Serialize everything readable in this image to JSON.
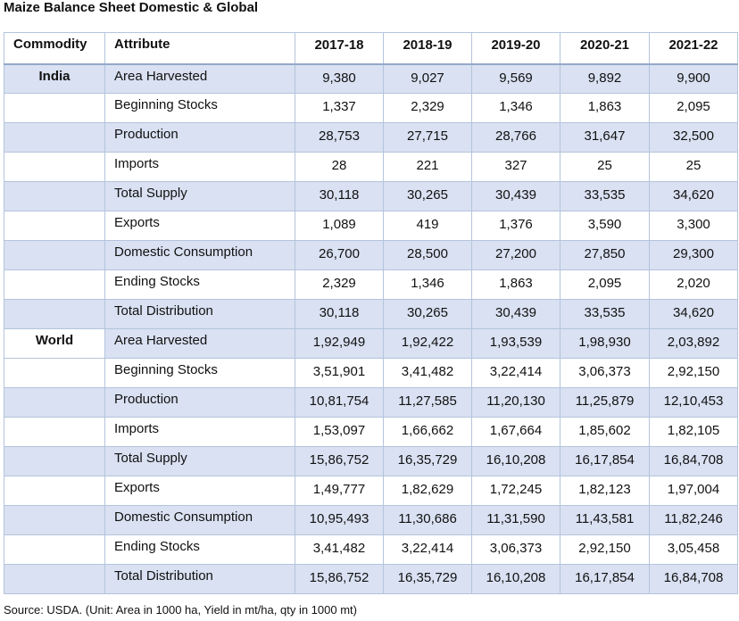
{
  "title": "Maize Balance Sheet Domestic & Global",
  "headers": [
    "Commodity",
    "Attribute",
    "2017-18",
    "2018-19",
    "2019-20",
    "2020-21",
    "2021-22"
  ],
  "groups": [
    {
      "commodity": "India",
      "rows": [
        {
          "attribute": "Area Harvested",
          "values": [
            "9,380",
            "9,027",
            "9,569",
            "9,892",
            "9,900"
          ]
        },
        {
          "attribute": "Beginning Stocks",
          "values": [
            "1,337",
            "2,329",
            "1,346",
            "1,863",
            "2,095"
          ]
        },
        {
          "attribute": "Production",
          "values": [
            "28,753",
            "27,715",
            "28,766",
            "31,647",
            "32,500"
          ]
        },
        {
          "attribute": "Imports",
          "values": [
            "28",
            "221",
            "327",
            "25",
            "25"
          ]
        },
        {
          "attribute": "Total Supply",
          "values": [
            "30,118",
            "30,265",
            "30,439",
            "33,535",
            "34,620"
          ]
        },
        {
          "attribute": "Exports",
          "values": [
            "1,089",
            "419",
            "1,376",
            "3,590",
            "3,300"
          ]
        },
        {
          "attribute": "Domestic Consumption",
          "values": [
            "26,700",
            "28,500",
            "27,200",
            "27,850",
            "29,300"
          ]
        },
        {
          "attribute": "Ending Stocks",
          "values": [
            "2,329",
            "1,346",
            "1,863",
            "2,095",
            "2,020"
          ]
        },
        {
          "attribute": "Total Distribution",
          "values": [
            "30,118",
            "30,265",
            "30,439",
            "33,535",
            "34,620"
          ]
        }
      ]
    },
    {
      "commodity": "World",
      "rows": [
        {
          "attribute": "Area Harvested",
          "values": [
            "1,92,949",
            "1,92,422",
            "1,93,539",
            "1,98,930",
            "2,03,892"
          ]
        },
        {
          "attribute": "Beginning Stocks",
          "values": [
            "3,51,901",
            "3,41,482",
            "3,22,414",
            "3,06,373",
            "2,92,150"
          ]
        },
        {
          "attribute": "Production",
          "values": [
            "10,81,754",
            "11,27,585",
            "11,20,130",
            "11,25,879",
            "12,10,453"
          ]
        },
        {
          "attribute": "Imports",
          "values": [
            "1,53,097",
            "1,66,662",
            "1,67,664",
            "1,85,602",
            "1,82,105"
          ]
        },
        {
          "attribute": "Total Supply",
          "values": [
            "15,86,752",
            "16,35,729",
            "16,10,208",
            "16,17,854",
            "16,84,708"
          ]
        },
        {
          "attribute": "Exports",
          "values": [
            "1,49,777",
            "1,82,629",
            "1,72,245",
            "1,82,123",
            "1,97,004"
          ]
        },
        {
          "attribute": "Domestic Consumption",
          "values": [
            "10,95,493",
            "11,30,686",
            "11,31,590",
            "11,43,581",
            "11,82,246"
          ]
        },
        {
          "attribute": "Ending Stocks",
          "values": [
            "3,41,482",
            "3,22,414",
            "3,06,373",
            "2,92,150",
            "3,05,458"
          ]
        },
        {
          "attribute": "Total Distribution",
          "values": [
            "15,86,752",
            "16,35,729",
            "16,10,208",
            "16,17,854",
            "16,84,708"
          ]
        }
      ]
    }
  ],
  "source": "Source: USDA. (Unit: Area in 1000 ha, Yield in mt/ha, qty in 1000 mt)",
  "colors": {
    "band": "#d9e1f2",
    "border": "#b4c4dc",
    "white": "#ffffff"
  }
}
